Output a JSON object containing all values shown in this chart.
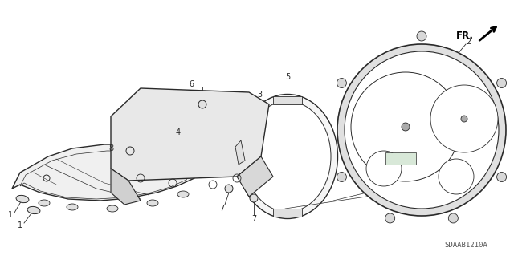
{
  "bg_color": "#ffffff",
  "line_color": "#2a2a2a",
  "part_number_label": "SDAAB1210A",
  "fig_width": 6.4,
  "fig_height": 3.19,
  "dpi": 100
}
